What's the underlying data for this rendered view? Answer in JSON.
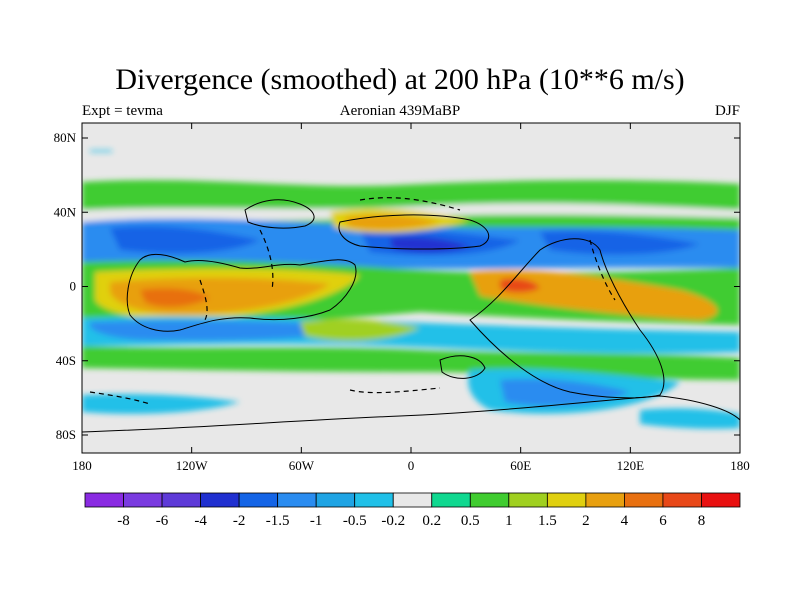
{
  "title": "Divergence (smoothed) at 200 hPa (10**6 m/s)",
  "left_label": "Expt = tevma",
  "center_label": "Aeronian 439MaBP",
  "right_label": "DJF",
  "lat_ticks": [
    "80N",
    "40N",
    "0",
    "40S",
    "80S"
  ],
  "lon_ticks": [
    "180",
    "120W",
    "60W",
    "0",
    "60E",
    "120E",
    "180"
  ],
  "colorbar": {
    "colors": [
      "#8a2be2",
      "#7a3be0",
      "#5e3ad8",
      "#2030d0",
      "#1464e6",
      "#2a8cf0",
      "#1fa4e4",
      "#20c0e8",
      "#e8e8e8",
      "#10d890",
      "#40cc30",
      "#a0d020",
      "#e0d010",
      "#e8a010",
      "#e87010",
      "#e84818",
      "#e81010"
    ],
    "labels": [
      "-8",
      "-6",
      "-4",
      "-2",
      "-1.5",
      "-1",
      "-0.5",
      "-0.2",
      "0.2",
      "0.5",
      "1",
      "1.5",
      "2",
      "4",
      "6",
      "8"
    ]
  },
  "field_colors": {
    "background": "#e8e8e8",
    "green": "#40cc30",
    "lightgreen": "#a0d020",
    "teal": "#10d890",
    "cyan": "#20c0e8",
    "lightblue": "#2a8cf0",
    "blue": "#1464e6",
    "darkblue": "#2030d0",
    "yellow": "#e0d010",
    "orange": "#e8a010",
    "darkorange": "#e87010",
    "red": "#e84818"
  }
}
